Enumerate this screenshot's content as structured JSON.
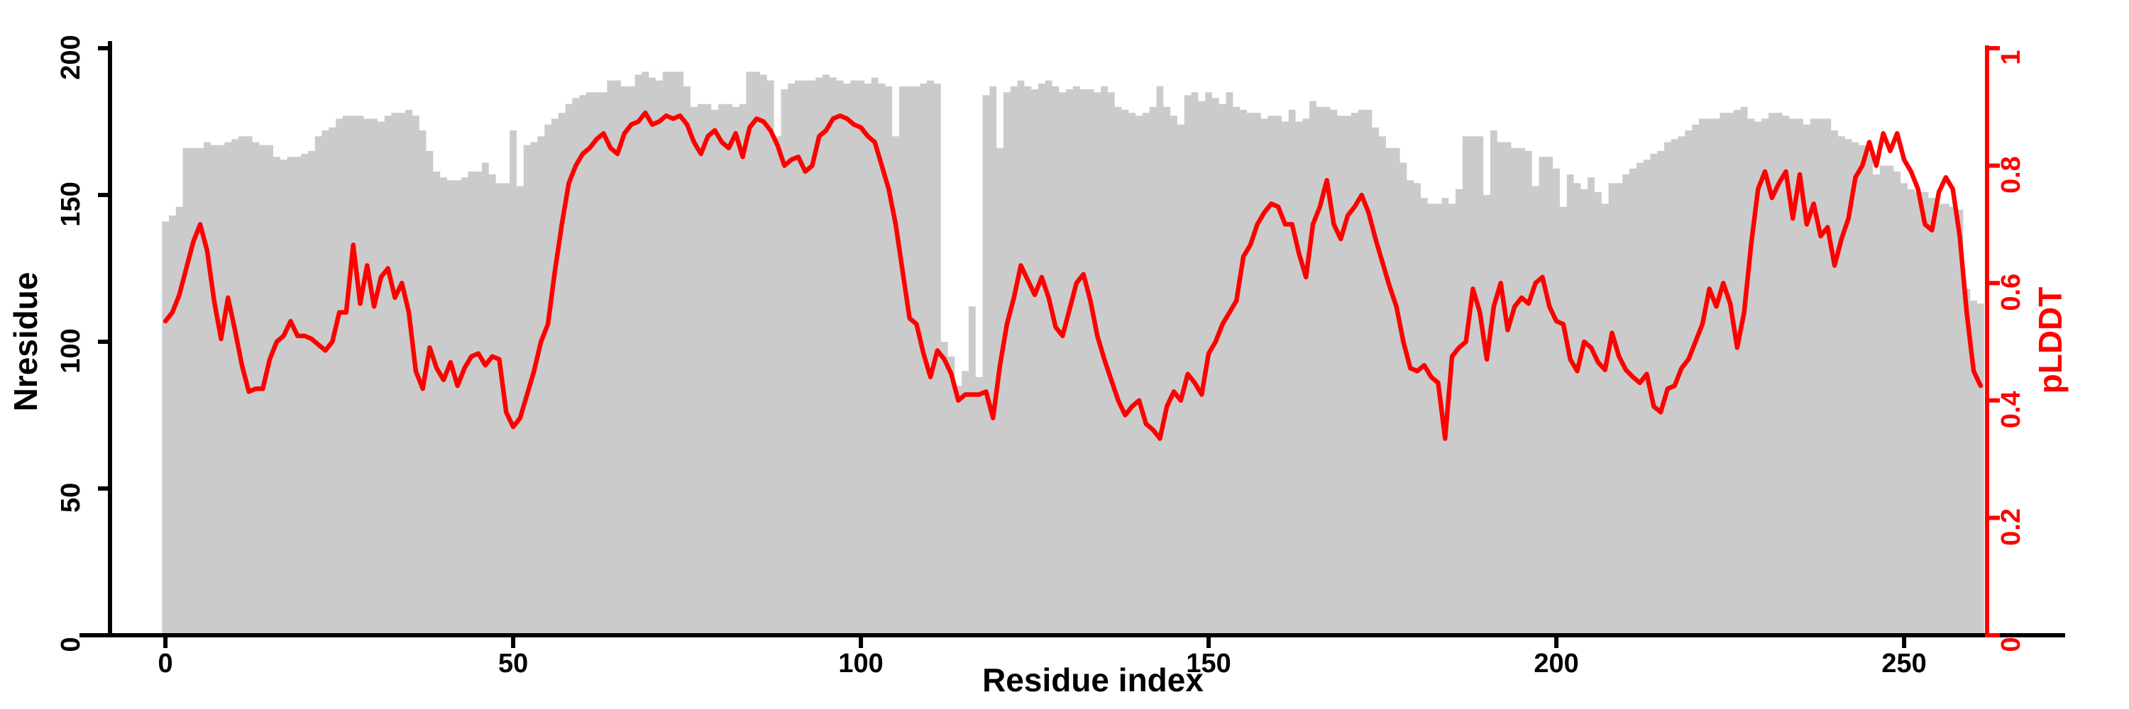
{
  "chart_data": {
    "type": "bar",
    "subtype": "dual-axis bar+line profile (per-residue)",
    "title": "",
    "xlabel": "Residue index",
    "ylabel_left": "Nresidue",
    "ylabel_right": "pLDDT",
    "x_ticks": [
      0,
      50,
      100,
      150,
      200,
      250
    ],
    "y_left_ticks": [
      0,
      50,
      100,
      150,
      200
    ],
    "y_right_ticks": [
      0,
      0.2,
      0.4,
      0.6,
      0.8,
      1
    ],
    "y_left_range": [
      0,
      200
    ],
    "y_right_range": [
      0,
      1
    ],
    "x_range_residues": [
      0,
      261
    ],
    "n_residues": 262,
    "grid": "off",
    "legend": "none",
    "bar_color": "#cbcbcb",
    "line_color": "#ff0000",
    "axis_color": "#000000",
    "right_axis_color": "#ff0000",
    "series": [
      {
        "name": "Nresidue",
        "type": "bar",
        "axis": "left",
        "values": [
          141,
          143,
          146,
          166,
          166,
          166,
          168,
          167,
          167,
          168,
          169,
          170,
          170,
          168,
          167,
          167,
          163,
          162,
          163,
          163,
          164,
          165,
          170,
          172,
          173,
          176,
          177,
          177,
          177,
          176,
          176,
          175,
          177,
          178,
          178,
          179,
          177,
          172,
          165,
          158,
          156,
          155,
          155,
          156,
          158,
          158,
          161,
          157,
          154,
          154,
          172,
          153,
          167,
          168,
          170,
          174,
          176,
          178,
          181,
          183,
          184,
          185,
          185,
          185,
          189,
          189,
          187,
          187,
          191,
          192,
          190,
          189,
          192,
          192,
          192,
          187,
          180,
          181,
          181,
          179,
          181,
          181,
          180,
          181,
          192,
          192,
          191,
          189,
          170,
          186,
          188,
          189,
          189,
          189,
          190,
          191,
          190,
          189,
          188,
          189,
          189,
          188,
          190,
          188,
          187,
          170,
          187,
          187,
          187,
          188,
          189,
          188,
          100,
          95,
          85,
          90,
          112,
          88,
          184,
          187,
          166,
          185,
          187,
          189,
          187,
          186,
          188,
          189,
          187,
          185,
          186,
          187,
          186,
          186,
          185,
          187,
          185,
          180,
          179,
          178,
          177,
          178,
          180,
          187,
          180,
          177,
          174,
          184,
          185,
          182,
          185,
          183,
          181,
          185,
          180,
          179,
          178,
          178,
          176,
          177,
          177,
          175,
          179,
          175,
          176,
          182,
          180,
          180,
          179,
          177,
          177,
          178,
          179,
          179,
          173,
          170,
          166,
          166,
          161,
          155,
          154,
          149,
          147,
          147,
          149,
          147,
          152,
          170,
          170,
          170,
          150,
          172,
          168,
          168,
          166,
          166,
          165,
          153,
          163,
          163,
          159,
          146,
          157,
          154,
          152,
          156,
          151,
          147,
          154,
          154,
          157,
          159,
          161,
          162,
          164,
          165,
          168,
          169,
          170,
          172,
          174,
          176,
          176,
          176,
          178,
          178,
          179,
          180,
          176,
          175,
          176,
          178,
          178,
          177,
          176,
          176,
          174,
          176,
          176,
          176,
          172,
          170,
          169,
          168,
          167,
          164,
          157,
          160,
          160,
          158,
          154,
          152,
          151,
          151,
          149,
          147,
          147,
          146,
          145,
          118,
          114,
          113
        ]
      },
      {
        "name": "pLDDT",
        "type": "line",
        "axis": "right",
        "values": [
          0.535,
          0.55,
          0.58,
          0.625,
          0.67,
          0.7,
          0.655,
          0.57,
          0.505,
          0.575,
          0.52,
          0.46,
          0.415,
          0.42,
          0.42,
          0.47,
          0.5,
          0.51,
          0.535,
          0.51,
          0.51,
          0.505,
          0.495,
          0.485,
          0.5,
          0.55,
          0.55,
          0.665,
          0.565,
          0.63,
          0.56,
          0.61,
          0.625,
          0.575,
          0.6,
          0.55,
          0.45,
          0.42,
          0.49,
          0.455,
          0.435,
          0.465,
          0.425,
          0.455,
          0.475,
          0.48,
          0.46,
          0.475,
          0.47,
          0.38,
          0.355,
          0.37,
          0.41,
          0.45,
          0.5,
          0.53,
          0.62,
          0.7,
          0.77,
          0.8,
          0.82,
          0.83,
          0.845,
          0.855,
          0.83,
          0.82,
          0.855,
          0.87,
          0.875,
          0.89,
          0.87,
          0.875,
          0.885,
          0.88,
          0.885,
          0.87,
          0.84,
          0.82,
          0.85,
          0.86,
          0.84,
          0.83,
          0.855,
          0.815,
          0.865,
          0.88,
          0.875,
          0.86,
          0.835,
          0.8,
          0.81,
          0.815,
          0.79,
          0.8,
          0.85,
          0.86,
          0.88,
          0.885,
          0.88,
          0.87,
          0.865,
          0.85,
          0.84,
          0.8,
          0.76,
          0.7,
          0.62,
          0.54,
          0.53,
          0.48,
          0.44,
          0.485,
          0.47,
          0.445,
          0.4,
          0.41,
          0.41,
          0.41,
          0.415,
          0.37,
          0.46,
          0.53,
          0.575,
          0.63,
          0.605,
          0.58,
          0.61,
          0.575,
          0.525,
          0.51,
          0.555,
          0.6,
          0.615,
          0.57,
          0.51,
          0.47,
          0.435,
          0.4,
          0.375,
          0.39,
          0.4,
          0.36,
          0.35,
          0.335,
          0.39,
          0.415,
          0.4,
          0.445,
          0.43,
          0.41,
          0.48,
          0.5,
          0.53,
          0.55,
          0.57,
          0.645,
          0.665,
          0.7,
          0.72,
          0.735,
          0.73,
          0.7,
          0.7,
          0.65,
          0.61,
          0.7,
          0.73,
          0.775,
          0.7,
          0.675,
          0.715,
          0.73,
          0.75,
          0.72,
          0.675,
          0.635,
          0.595,
          0.56,
          0.5,
          0.455,
          0.45,
          0.46,
          0.44,
          0.43,
          0.335,
          0.475,
          0.49,
          0.5,
          0.59,
          0.55,
          0.47,
          0.56,
          0.6,
          0.52,
          0.56,
          0.575,
          0.565,
          0.6,
          0.61,
          0.56,
          0.535,
          0.53,
          0.47,
          0.45,
          0.5,
          0.49,
          0.465,
          0.452,
          0.515,
          0.475,
          0.452,
          0.44,
          0.43,
          0.445,
          0.39,
          0.38,
          0.42,
          0.425,
          0.455,
          0.47,
          0.5,
          0.53,
          0.59,
          0.56,
          0.6,
          0.565,
          0.49,
          0.55,
          0.665,
          0.76,
          0.79,
          0.745,
          0.77,
          0.79,
          0.71,
          0.785,
          0.7,
          0.735,
          0.68,
          0.695,
          0.63,
          0.675,
          0.71,
          0.78,
          0.8,
          0.84,
          0.8,
          0.855,
          0.825,
          0.855,
          0.81,
          0.79,
          0.76,
          0.7,
          0.69,
          0.755,
          0.78,
          0.76,
          0.68,
          0.55,
          0.45,
          0.425
        ]
      }
    ]
  }
}
